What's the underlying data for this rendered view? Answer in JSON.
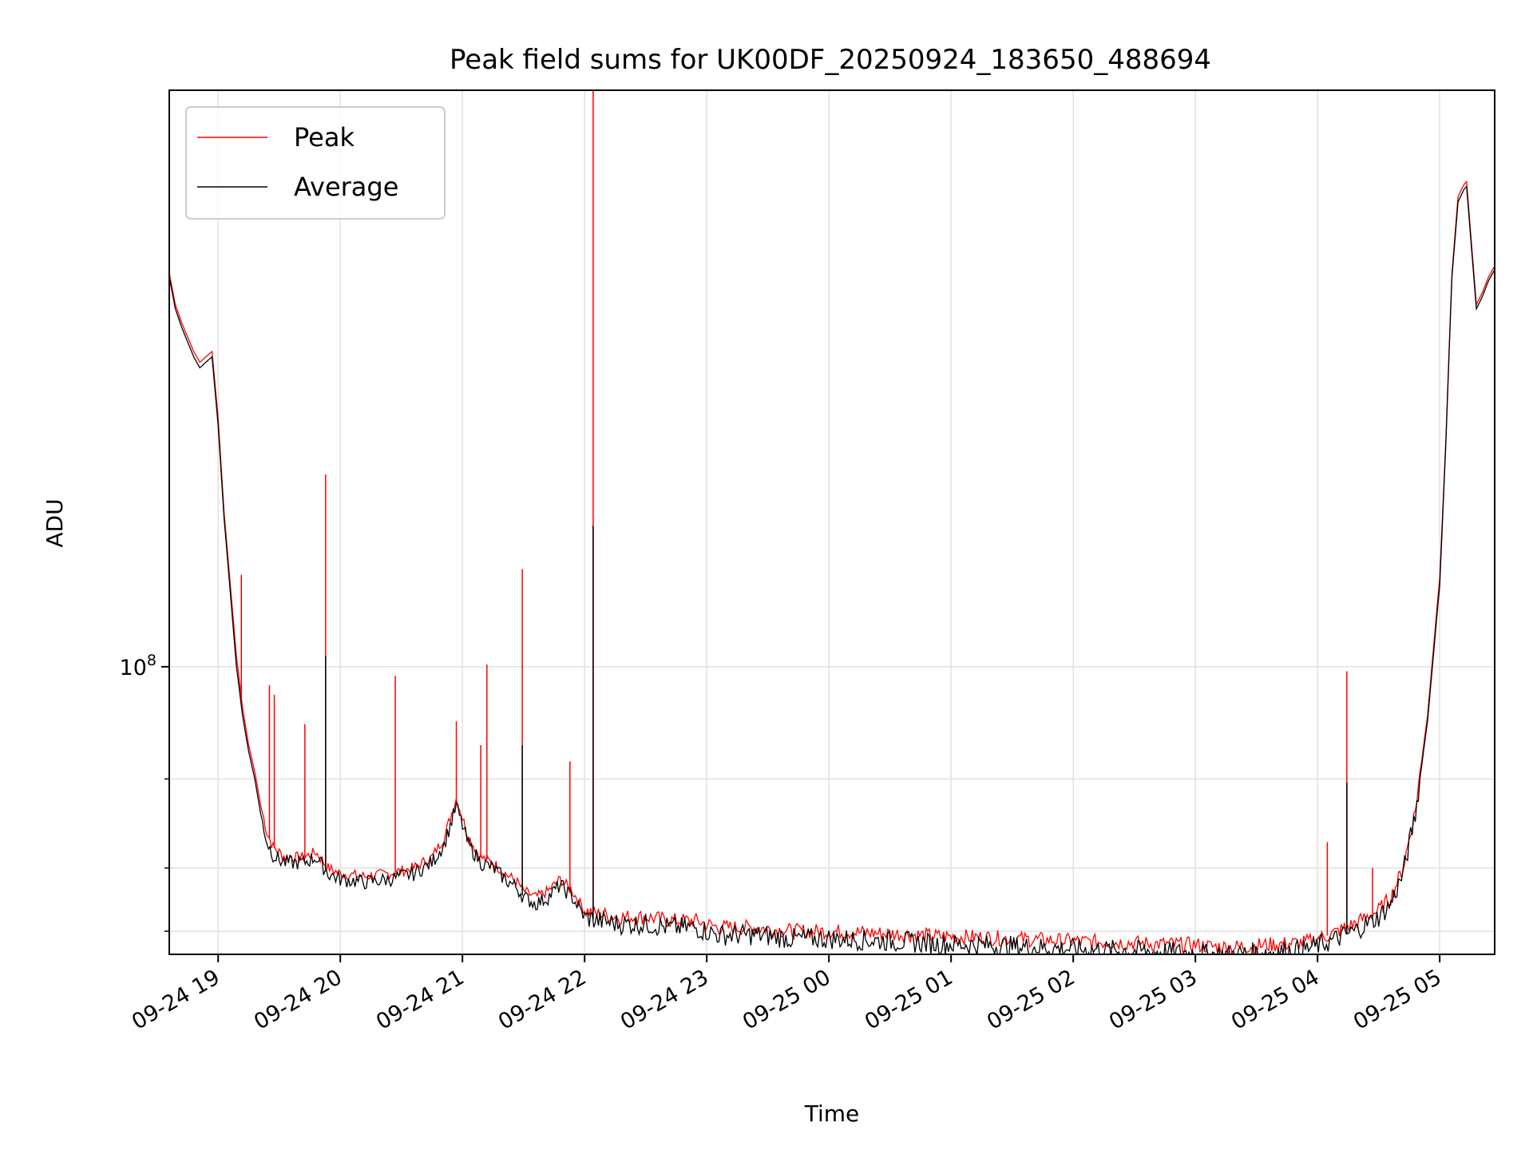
{
  "chart_data": {
    "type": "line",
    "title": "Peak field sums for UK00DF_20250924_183650_488694",
    "xlabel": "Time",
    "ylabel": "ADU",
    "yscale": "log",
    "x_unit": "hours since 2025-09-24 00:00",
    "xlim": [
      18.6,
      29.45
    ],
    "ylim": [
      27000000,
      1380000000
    ],
    "x_ticks": [
      {
        "value": 19,
        "label": "09-24 19"
      },
      {
        "value": 20,
        "label": "09-24 20"
      },
      {
        "value": 21,
        "label": "09-24 21"
      },
      {
        "value": 22,
        "label": "09-24 22"
      },
      {
        "value": 23,
        "label": "09-24 23"
      },
      {
        "value": 24,
        "label": "09-25 00"
      },
      {
        "value": 25,
        "label": "09-25 01"
      },
      {
        "value": 26,
        "label": "09-25 02"
      },
      {
        "value": 27,
        "label": "09-25 03"
      },
      {
        "value": 28,
        "label": "09-25 04"
      },
      {
        "value": 29,
        "label": "09-25 05"
      }
    ],
    "y_major_ticks": [
      {
        "value": 100000000,
        "base": "10",
        "exp": "8"
      }
    ],
    "y_minor_ticks": [
      30000000,
      40000000,
      60000000
    ],
    "legend": {
      "position": "top-left",
      "entries": [
        {
          "name": "Peak",
          "color": "#ff0000"
        },
        {
          "name": "Average",
          "color": "#000000"
        }
      ]
    },
    "series": [
      {
        "name": "Peak",
        "color": "#ff0000",
        "x": [
          18.6,
          18.65,
          18.7,
          18.8,
          18.85,
          18.9,
          18.95,
          19.0,
          19.05,
          19.1,
          19.15,
          19.2,
          19.25,
          19.3,
          19.35,
          19.4,
          19.45,
          19.5,
          19.55,
          19.6,
          19.7,
          19.8,
          19.9,
          20.0,
          20.2,
          20.4,
          20.6,
          20.75,
          20.85,
          20.95,
          21.05,
          21.15,
          21.25,
          21.35,
          21.45,
          21.5,
          21.6,
          21.7,
          21.75,
          21.8,
          21.9,
          22.0,
          22.1,
          22.3,
          22.5,
          22.7,
          22.9,
          23.1,
          23.4,
          23.7,
          24.0,
          24.3,
          24.6,
          24.9,
          25.2,
          25.5,
          25.8,
          26.1,
          26.4,
          26.7,
          27.0,
          27.1,
          27.3,
          27.6,
          27.9,
          28.1,
          28.3,
          28.5,
          28.6,
          28.7,
          28.8,
          28.9,
          29.0,
          29.05,
          29.1,
          29.15,
          29.2,
          29.22,
          29.3,
          29.35,
          29.4,
          29.45
        ],
        "values": [
          600000000,
          520000000,
          480000000,
          420000000,
          400000000,
          410000000,
          420000000,
          310000000,
          200000000,
          145000000,
          105000000,
          83000000,
          70000000,
          62000000,
          53000000,
          47000000,
          44000000,
          43000000,
          42000000,
          42000000,
          42000000,
          43000000,
          40000000,
          39000000,
          38500000,
          39000000,
          40000000,
          42000000,
          46000000,
          55000000,
          46000000,
          42000000,
          41000000,
          39000000,
          37500000,
          36000000,
          35000000,
          36000000,
          37000000,
          38000000,
          36000000,
          33000000,
          32500000,
          32000000,
          32000000,
          31500000,
          31500000,
          30500000,
          30500000,
          30000000,
          30000000,
          29800000,
          29600000,
          29300000,
          29200000,
          29000000,
          28800000,
          28600000,
          28500000,
          28300000,
          28200000,
          28000000,
          27900000,
          28200000,
          28500000,
          29500000,
          31000000,
          33000000,
          35000000,
          40000000,
          52000000,
          80000000,
          150000000,
          280000000,
          600000000,
          850000000,
          900000000,
          910000000,
          520000000,
          550000000,
          590000000,
          620000000
        ]
      },
      {
        "name": "Average",
        "color": "#000000",
        "x": [
          18.6,
          18.65,
          18.7,
          18.8,
          18.85,
          18.9,
          18.95,
          19.0,
          19.05,
          19.1,
          19.15,
          19.2,
          19.25,
          19.3,
          19.35,
          19.4,
          19.45,
          19.5,
          19.55,
          19.6,
          19.7,
          19.8,
          19.9,
          20.0,
          20.2,
          20.4,
          20.6,
          20.75,
          20.85,
          20.95,
          21.05,
          21.15,
          21.25,
          21.35,
          21.45,
          21.5,
          21.6,
          21.7,
          21.75,
          21.8,
          21.9,
          22.0,
          22.1,
          22.3,
          22.5,
          22.7,
          22.9,
          23.1,
          23.4,
          23.7,
          24.0,
          24.3,
          24.6,
          24.9,
          25.2,
          25.5,
          25.8,
          26.1,
          26.4,
          26.7,
          27.0,
          27.1,
          27.3,
          27.6,
          27.9,
          28.1,
          28.3,
          28.5,
          28.6,
          28.7,
          28.8,
          28.9,
          29.0,
          29.05,
          29.1,
          29.15,
          29.2,
          29.22,
          29.3,
          29.35,
          29.4,
          29.45
        ],
        "values": [
          590000000,
          510000000,
          470000000,
          410000000,
          390000000,
          400000000,
          410000000,
          300000000,
          195000000,
          140000000,
          100000000,
          80000000,
          68000000,
          60000000,
          51000000,
          45000000,
          42500000,
          41500000,
          41000000,
          41000000,
          41000000,
          42000000,
          39000000,
          38000000,
          37500000,
          38000000,
          39000000,
          41000000,
          44500000,
          53000000,
          44500000,
          41000000,
          40000000,
          38000000,
          36500000,
          35000000,
          34000000,
          35000000,
          36000000,
          37000000,
          35000000,
          32000000,
          31500000,
          31000000,
          31000000,
          30500000,
          30500000,
          29500000,
          29500000,
          29000000,
          29000000,
          28800000,
          28600000,
          28300000,
          28200000,
          28000000,
          27800000,
          27600000,
          27500000,
          27300000,
          27200000,
          27000000,
          27000000,
          27300000,
          27600000,
          28600000,
          30000000,
          32000000,
          34000000,
          39000000,
          51000000,
          78000000,
          145000000,
          275000000,
          590000000,
          830000000,
          880000000,
          890000000,
          510000000,
          540000000,
          580000000,
          610000000
        ]
      }
    ],
    "spikes": [
      {
        "series": "Peak",
        "x": 19.19,
        "value": 152000000
      },
      {
        "series": "Peak",
        "x": 19.42,
        "value": 92000000
      },
      {
        "series": "Peak",
        "x": 19.46,
        "value": 88000000
      },
      {
        "series": "Peak",
        "x": 19.71,
        "value": 77000000
      },
      {
        "series": "Peak",
        "x": 19.88,
        "value": 240000000
      },
      {
        "series": "Average",
        "x": 19.88,
        "value": 105000000
      },
      {
        "series": "Peak",
        "x": 20.45,
        "value": 96000000
      },
      {
        "series": "Peak",
        "x": 20.95,
        "value": 78000000
      },
      {
        "series": "Peak",
        "x": 21.2,
        "value": 101000000
      },
      {
        "series": "Peak",
        "x": 21.15,
        "value": 70000000
      },
      {
        "series": "Peak",
        "x": 21.49,
        "value": 156000000
      },
      {
        "series": "Average",
        "x": 21.49,
        "value": 70000000
      },
      {
        "series": "Peak",
        "x": 21.88,
        "value": 65000000
      },
      {
        "series": "Peak",
        "x": 22.07,
        "value": 1380000000
      },
      {
        "series": "Average",
        "x": 22.07,
        "value": 190000000
      },
      {
        "series": "Peak",
        "x": 28.08,
        "value": 45000000
      },
      {
        "series": "Peak",
        "x": 28.24,
        "value": 98000000
      },
      {
        "series": "Average",
        "x": 28.24,
        "value": 59000000
      },
      {
        "series": "Peak",
        "x": 28.45,
        "value": 40000000
      }
    ]
  }
}
